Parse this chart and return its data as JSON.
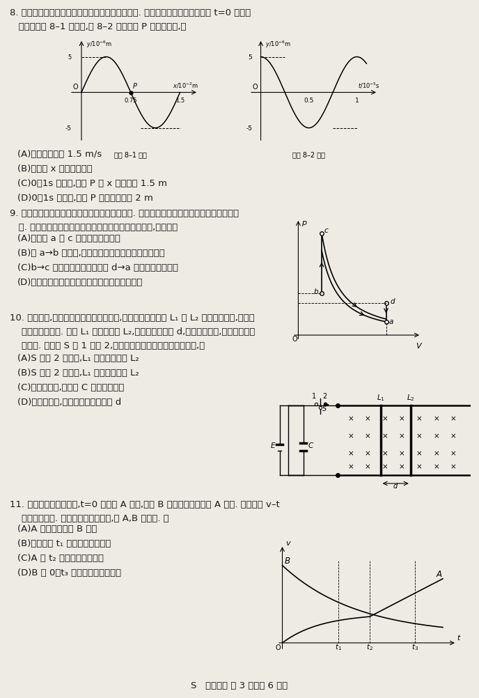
{
  "bg_color": "#eeebe5",
  "text_color": "#1a1a1a",
  "fig_width": 6.88,
  "fig_height": 10.03,
  "q8_header": "8. 渔船上的声呐利用超声波来探测远方鱼群的方位. 某渔船发出的一列超声波在 t=0 时的波",
  "q8_line2": "   动图像如题 8–1 图所示,题 8–2 图为质点 P 的振动图像,则",
  "q8_A": "(A)该波的波速为 1.5 m/s",
  "q8_B": "(B)该波沿 x 轴负方向传播",
  "q8_C": "(C)0～1s 时间内,质点 P 沿 x 轴运动了 1.5 m",
  "q8_D": "(D)0～1s 时间内,质点 P 运动的路程为 2 m",
  "q9_header": "9. 某汽车的四冲程内燃机利用奥托循环进行工作. 该循环由两个绝热过程和两个等容过程组",
  "q9_line2": "   成. 如图所示为一定质量的理想气体所经历的奥托循环,则该气体",
  "q9_A": "(A)在状态 a 和 c 时的内能可能相等",
  "q9_B": "(B)在 a→b 过程中,外界对其做的功全部用于增加内能",
  "q9_C": "(C)b→c 过程中增加的内能小于 d→a 过程中减少的内能",
  "q9_D": "(D)在一次循环过程中吸收的热量小于放出的热量",
  "q10_header": "10. 如图所示,光滑的平行长导轨水平放置,质量相等的导体棒 L₁ 和 L₂ 静止在导轨上,与导轨",
  "q10_line2": "    垂直且接触良好. 已知 L₁ 的电阻大于 L₂,两棒间的距离为 d,不计导轨电阻,忽略电流产生",
  "q10_line3": "    的磁场. 将开关 S 从 1 拨到 2,两棒运动一段时间后达到稳定状态,则",
  "q10_A": "(A)S 拨到 2 的瞬间,L₁ 中的电流大于 L₂",
  "q10_B": "(B)S 拨到 2 的瞬间,L₁ 的加速度大于 L₂",
  "q10_C": "(C)运动稳定后,电容器 C 的电荷量为零",
  "q10_D": "(D)运动稳定后,两棒之间的距离大于 d",
  "q11_header": "11. 带电粒子碰撞实验中,t=0 时粒子 A 静止,粒子 B 以一定的初速度向 A 运动. 两粒子的 v–t",
  "q11_line2": "    图像如图所示. 仅考虑静电力的作用,且 A,B 未接触. 则",
  "q11_A": "(A)A 粒子质量小于 B 粒子",
  "q11_B": "(B)两粒子在 t₁ 时刻的电势能最大",
  "q11_C": "(C)A 在 t₂ 时刻的加速度最大",
  "q11_D": "(D)B 在 0～t₃ 时间内动能一直减小",
  "footer": "S   物理试卷 第 3 页（共 6 页）"
}
